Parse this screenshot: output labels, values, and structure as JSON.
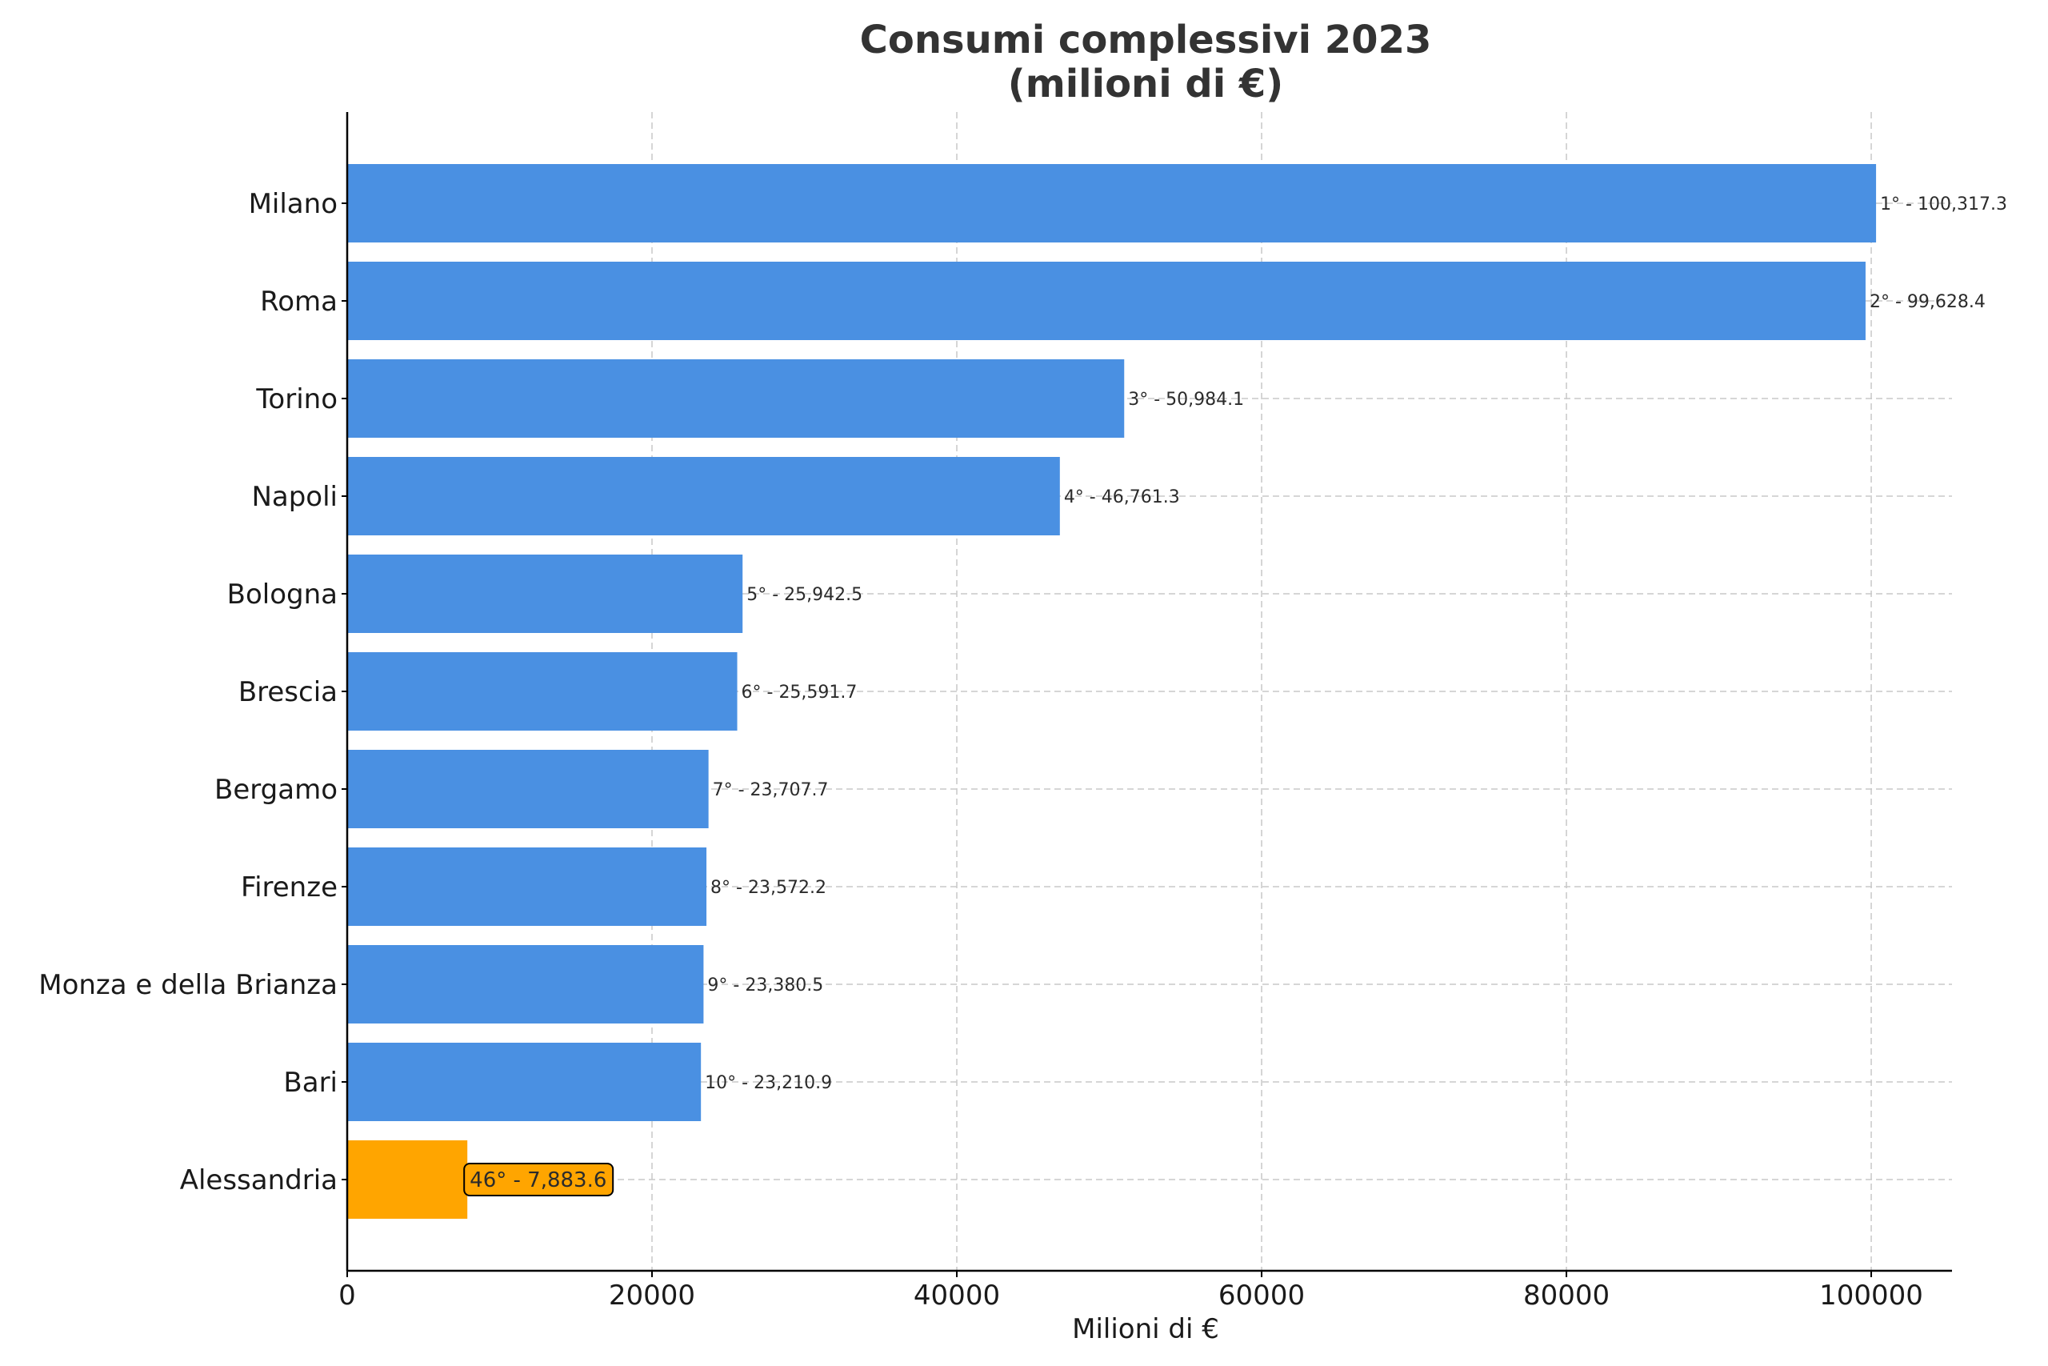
{
  "chart_data": {
    "type": "bar",
    "orientation": "horizontal",
    "title_lines": [
      "Consumi complessivi 2023",
      "(milioni di €)"
    ],
    "xlabel": "Milioni di €",
    "ylabel": "",
    "xlim": [
      0,
      105300
    ],
    "xticks": [
      0,
      20000,
      40000,
      60000,
      80000,
      100000
    ],
    "grid": true,
    "categories": [
      "Milano",
      "Roma",
      "Torino",
      "Napoli",
      "Bologna",
      "Brescia",
      "Bergamo",
      "Firenze",
      "Monza e della Brianza",
      "Bari",
      "Alessandria"
    ],
    "values": [
      100317.3,
      99628.4,
      50984.1,
      46761.3,
      25942.5,
      25591.7,
      23707.7,
      23572.2,
      23380.5,
      23210.9,
      7883.6
    ],
    "labels": [
      "1° - 100,317.3",
      "2° - 99,628.4",
      "3° - 50,984.1",
      "4° - 46,761.3",
      "5° - 25,942.5",
      "6° - 25,591.7",
      "7° - 23,707.7",
      "8° - 23,572.2",
      "9° - 23,380.5",
      "10° - 23,210.9",
      "46° - 7,883.6"
    ],
    "highlight_index": 10,
    "colors": {
      "bar": "#4a90e2",
      "highlight": "#ffa500",
      "grid": "#c8c8c8",
      "axis": "#000000"
    }
  }
}
